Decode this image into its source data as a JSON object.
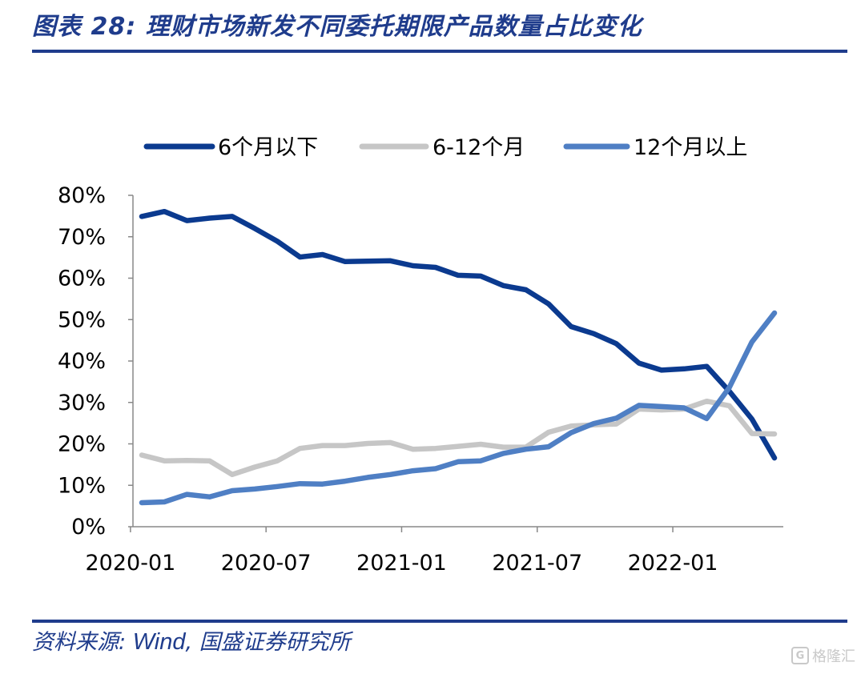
{
  "header": {
    "title": "图表 28:  理财市场新发不同委托期限产品数量占比变化"
  },
  "footer": {
    "source_label": "资料来源: ",
    "source_wind": "Wind",
    "source_rest": ", 国盛证券研究所",
    "watermark": "格隆汇"
  },
  "colors": {
    "accent": "#1f3c8c",
    "series_short": "#0b3a8f",
    "series_mid": "#c6c6c6",
    "series_long": "#4f7fc4"
  },
  "chart_data": {
    "type": "line",
    "title": "",
    "xlabel": "",
    "ylabel": "",
    "ylim": [
      0,
      80
    ],
    "yticks": [
      "0%",
      "10%",
      "20%",
      "30%",
      "40%",
      "50%",
      "60%",
      "70%",
      "80%"
    ],
    "x": [
      "2020-01",
      "2020-02",
      "2020-03",
      "2020-04",
      "2020-05",
      "2020-06",
      "2020-07",
      "2020-08",
      "2020-09",
      "2020-10",
      "2020-11",
      "2020-12",
      "2021-01",
      "2021-02",
      "2021-03",
      "2021-04",
      "2021-05",
      "2021-06",
      "2021-07",
      "2021-08",
      "2021-09",
      "2021-10",
      "2021-11",
      "2021-12",
      "2022-01",
      "2022-02",
      "2022-03",
      "2022-04",
      "2022-05"
    ],
    "xtick_labels": [
      "2020-01",
      "2020-07",
      "2021-01",
      "2021-07",
      "2022-01"
    ],
    "grid": false,
    "legend_position": "top",
    "series": [
      {
        "name": "6个月以下",
        "color": "#0b3a8f",
        "values": [
          74.9,
          76.1,
          73.9,
          74.5,
          74.9,
          72.0,
          68.9,
          65.1,
          65.7,
          64.0,
          64.1,
          64.2,
          63.0,
          62.6,
          60.7,
          60.5,
          58.2,
          57.2,
          53.8,
          48.3,
          46.6,
          44.2,
          39.5,
          37.8,
          38.1,
          38.7,
          32.7,
          26.0,
          16.6
        ]
      },
      {
        "name": "6-12个月",
        "color": "#c6c6c6",
        "values": [
          17.3,
          15.9,
          16.0,
          15.9,
          12.6,
          14.4,
          15.9,
          18.9,
          19.6,
          19.6,
          20.1,
          20.3,
          18.7,
          18.9,
          19.4,
          19.9,
          19.2,
          19.2,
          22.8,
          24.3,
          24.6,
          24.8,
          28.4,
          28.2,
          28.4,
          30.3,
          29.2,
          22.5,
          22.4
        ]
      },
      {
        "name": "12个月以上",
        "color": "#4f7fc4",
        "values": [
          5.8,
          6.0,
          7.8,
          7.2,
          8.7,
          9.1,
          9.7,
          10.4,
          10.3,
          11.0,
          11.9,
          12.6,
          13.5,
          14.0,
          15.7,
          15.9,
          17.7,
          18.7,
          19.3,
          22.7,
          24.9,
          26.2,
          29.3,
          29.0,
          28.7,
          26.1,
          33.6,
          44.6,
          51.6
        ]
      }
    ]
  }
}
